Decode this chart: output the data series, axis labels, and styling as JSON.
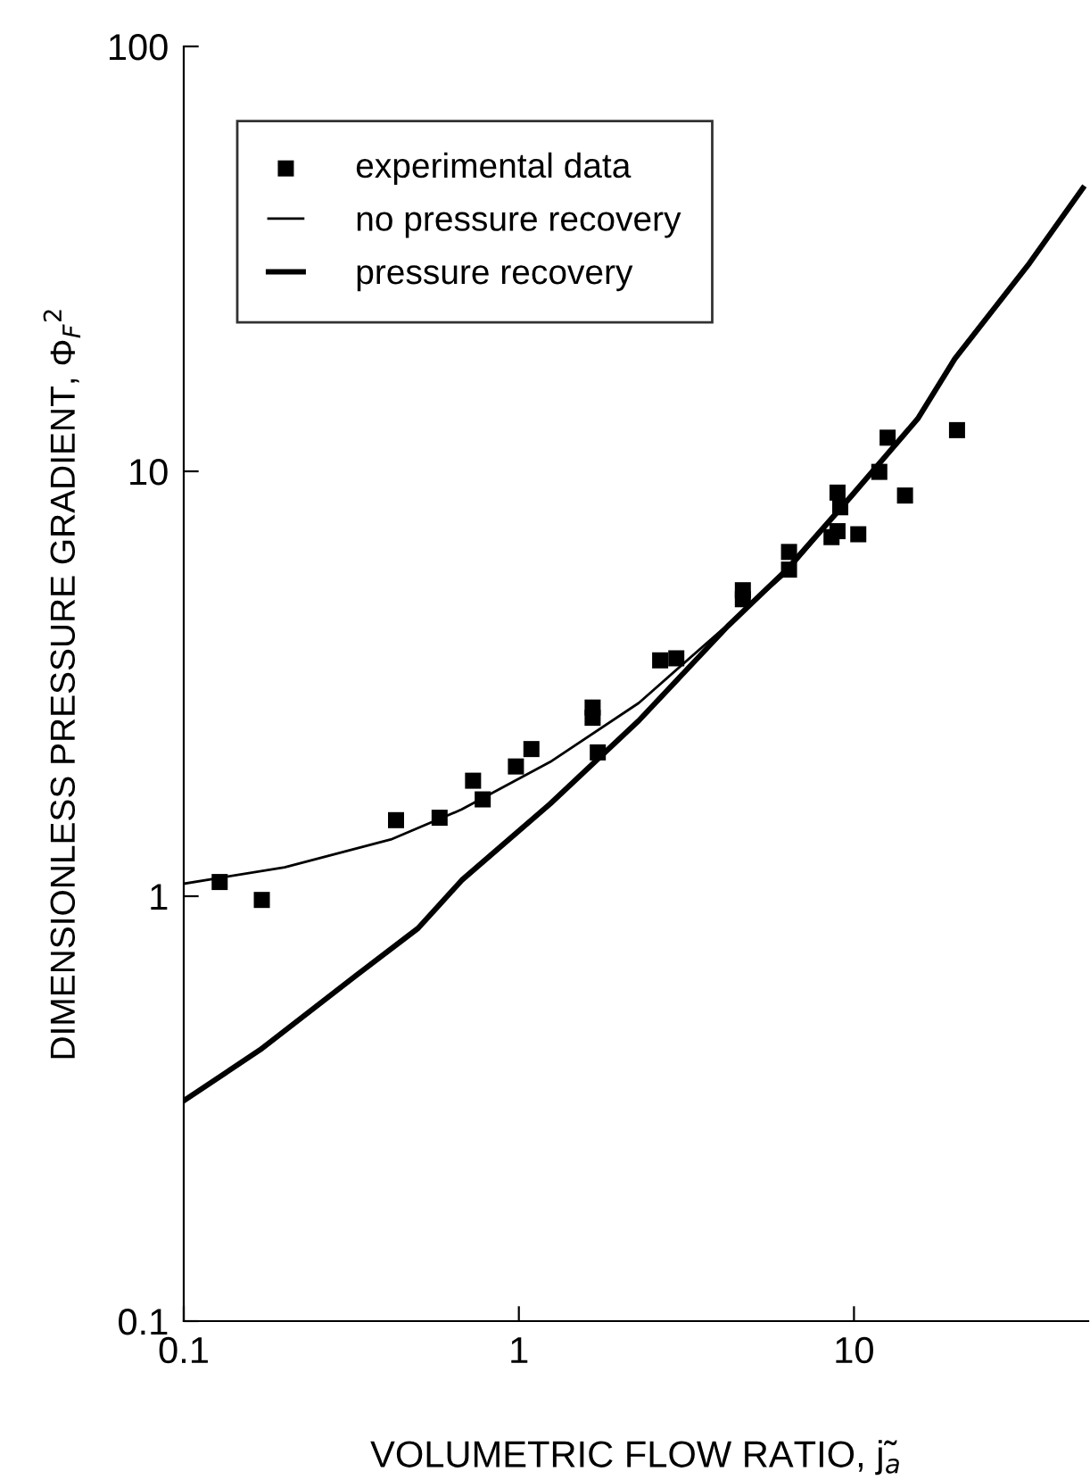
{
  "chart_data": {
    "type": "scatter",
    "xlabel": "VOLUMETRIC FLOW RATIO, j̃$_{a}$",
    "ylabel": "DIMENSIONLESS PRESSURE GRADIENT, Φ$_{F}$$^{2}$",
    "log": "xy",
    "xlim": [
      0.1,
      50
    ],
    "ylim": [
      0.1,
      100
    ],
    "xticks": [
      0.1,
      1,
      10
    ],
    "yticks": [
      0.1,
      1,
      10,
      100
    ],
    "grid": false,
    "legend": "top left",
    "series": [
      {
        "name": "experimental data",
        "marker": "square",
        "color": "#000000",
        "x": [
          0.128,
          0.171,
          0.43,
          0.58,
          0.73,
          0.78,
          0.98,
          1.09,
          1.66,
          1.66,
          1.72,
          2.64,
          2.95,
          4.66,
          4.66,
          6.4,
          6.4,
          8.93,
          9.1,
          8.57,
          8.93,
          10.3,
          11.9,
          12.6,
          14.2,
          20.3
        ],
        "values": [
          1.08,
          0.98,
          1.51,
          1.53,
          1.87,
          1.69,
          2.02,
          2.22,
          2.78,
          2.63,
          2.18,
          3.59,
          3.63,
          5.25,
          5.0,
          6.46,
          5.87,
          8.91,
          8.23,
          7.0,
          7.23,
          7.11,
          9.97,
          12.0,
          8.77,
          12.5
        ]
      },
      {
        "name": "no pressure recovery",
        "type": "line",
        "marker": "none",
        "line_style": "solid",
        "color": "#000000",
        "x": [
          0.1,
          0.2,
          0.415,
          0.675,
          1.24,
          2.28,
          6.3,
          9.85,
          15.5
        ],
        "values": [
          1.07,
          1.17,
          1.36,
          1.6,
          2.07,
          2.85,
          5.77,
          8.77,
          13.3
        ]
      },
      {
        "name": "pressure recovery",
        "type": "line",
        "marker": "none",
        "line_style": "solid",
        "color": "#000000",
        "x": [
          0.1,
          0.169,
          0.326,
          0.5,
          0.675,
          1.24,
          2.28,
          4.2,
          6.3,
          9.85,
          15.5,
          20,
          33.4,
          48.2
        ],
        "values": [
          0.33,
          0.435,
          0.65,
          0.84,
          1.09,
          1.65,
          2.59,
          4.32,
          5.87,
          8.77,
          13.3,
          18.4,
          30.9,
          46.4
        ]
      }
    ]
  }
}
